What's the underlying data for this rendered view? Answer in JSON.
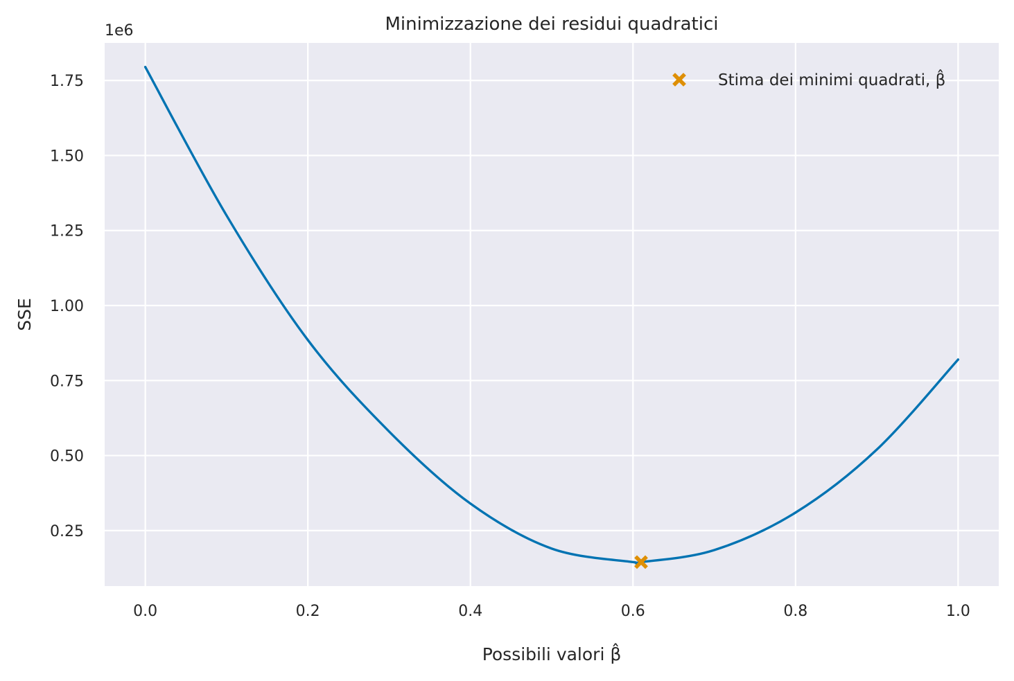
{
  "chart_data": {
    "type": "line",
    "title": "Minimizzazione dei residui quadratici",
    "xlabel": "Possibili valori β̂",
    "ylabel": "SSE",
    "y_offset_label": "1e6",
    "xlim": [
      -0.05,
      1.05
    ],
    "ylim": [
      0.065,
      1.875
    ],
    "x_ticks": [
      0.0,
      0.2,
      0.4,
      0.6,
      0.8,
      1.0
    ],
    "x_tick_labels": [
      "0.0",
      "0.2",
      "0.4",
      "0.6",
      "0.8",
      "1.0"
    ],
    "y_ticks": [
      0.25,
      0.5,
      0.75,
      1.0,
      1.25,
      1.5,
      1.75
    ],
    "y_tick_labels": [
      "0.25",
      "0.50",
      "0.75",
      "1.00",
      "1.25",
      "1.50",
      "1.75"
    ],
    "grid": true,
    "legend_position": "top-right",
    "series": [
      {
        "kind": "line",
        "x": [
          0.0,
          0.1,
          0.2,
          0.3,
          0.4,
          0.5,
          0.6,
          0.61,
          0.7,
          0.8,
          0.9,
          1.0
        ],
        "values": [
          1.795,
          1.3,
          0.885,
          0.58,
          0.34,
          0.19,
          0.145,
          0.145,
          0.185,
          0.31,
          0.52,
          0.82
        ],
        "color": "#0173b2"
      },
      {
        "kind": "point",
        "name": "Stima dei minimi quadrati, β̂",
        "x": [
          0.61
        ],
        "values": [
          0.145
        ],
        "color": "#de8f05",
        "marker": "x-marker"
      }
    ]
  }
}
